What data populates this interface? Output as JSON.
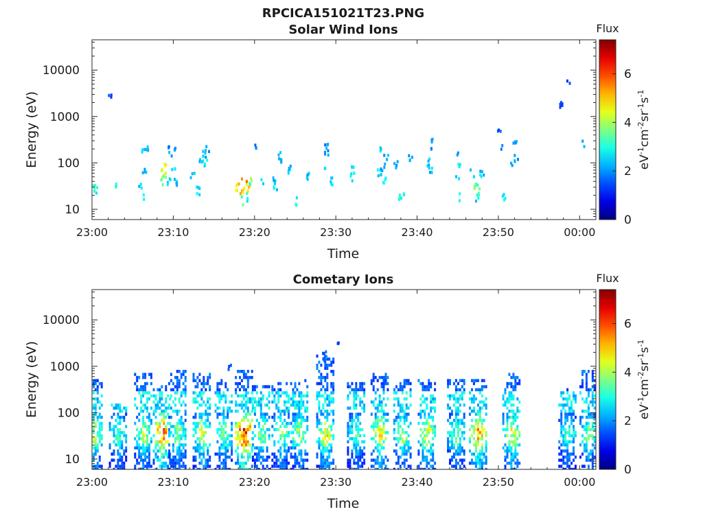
{
  "figure_title": "RPCICA151021T23.PNG",
  "colors": {
    "axis": "#262626",
    "background": "#ffffff"
  },
  "chart_data": [
    {
      "type": "heatmap",
      "title": "Solar Wind Ions",
      "xlabel": "Time",
      "ylabel": "Energy (eV)",
      "yscale": "log",
      "ylim": [
        6,
        45000
      ],
      "xlim": [
        "23:00",
        "00:02"
      ],
      "x_ticks": [
        "23:00",
        "23:10",
        "23:20",
        "23:30",
        "23:40",
        "23:50",
        "00:00"
      ],
      "y_ticks": [
        "10",
        "100",
        "1000",
        "10000"
      ],
      "colorbar": {
        "label_top": "Flux",
        "unit": "eV-1cm-2sr-1s-1",
        "ticks": [
          "0",
          "2",
          "4",
          "6"
        ],
        "range": [
          0,
          7.4
        ],
        "colormap": "jet"
      },
      "points": [
        {
          "t": 0.2,
          "e": 30,
          "f": 3.0
        },
        {
          "t": 0.5,
          "e": 25,
          "f": 2.8
        },
        {
          "t": 2.2,
          "e": 3000,
          "f": 1.4
        },
        {
          "t": 3.0,
          "e": 30,
          "f": 2.8
        },
        {
          "t": 6.0,
          "e": 30,
          "f": 2.5
        },
        {
          "t": 6.3,
          "e": 200,
          "f": 2.5
        },
        {
          "t": 6.5,
          "e": 18,
          "f": 2.8
        },
        {
          "t": 6.5,
          "e": 60,
          "f": 2.3
        },
        {
          "t": 6.7,
          "e": 180,
          "f": 2.4
        },
        {
          "t": 8.5,
          "e": 40,
          "f": 3.8
        },
        {
          "t": 8.7,
          "e": 60,
          "f": 4.2
        },
        {
          "t": 8.9,
          "e": 80,
          "f": 4.4
        },
        {
          "t": 9.0,
          "e": 50,
          "f": 3.9
        },
        {
          "t": 9.4,
          "e": 40,
          "f": 2.6
        },
        {
          "t": 9.5,
          "e": 260,
          "f": 1.9
        },
        {
          "t": 9.7,
          "e": 150,
          "f": 2.2
        },
        {
          "t": 10.0,
          "e": 80,
          "f": 2.4
        },
        {
          "t": 10.3,
          "e": 40,
          "f": 2.4
        },
        {
          "t": 10.2,
          "e": 200,
          "f": 2.0
        },
        {
          "t": 12.4,
          "e": 50,
          "f": 2.4
        },
        {
          "t": 13.0,
          "e": 25,
          "f": 2.5
        },
        {
          "t": 13.5,
          "e": 100,
          "f": 2.3
        },
        {
          "t": 13.8,
          "e": 150,
          "f": 2.2
        },
        {
          "t": 14.0,
          "e": 100,
          "f": 2.7
        },
        {
          "t": 14.2,
          "e": 200,
          "f": 2.2
        },
        {
          "t": 17.8,
          "e": 30,
          "f": 4.5
        },
        {
          "t": 18.2,
          "e": 40,
          "f": 5.0
        },
        {
          "t": 18.5,
          "e": 25,
          "f": 4.8
        },
        {
          "t": 18.8,
          "e": 35,
          "f": 5.4
        },
        {
          "t": 19.2,
          "e": 30,
          "f": 4.6
        },
        {
          "t": 18.6,
          "e": 15,
          "f": 3.2
        },
        {
          "t": 19.0,
          "e": 18,
          "f": 3.0
        },
        {
          "t": 19.6,
          "e": 40,
          "f": 3.8
        },
        {
          "t": 20.0,
          "e": 250,
          "f": 1.9
        },
        {
          "t": 21.0,
          "e": 40,
          "f": 2.4
        },
        {
          "t": 22.4,
          "e": 50,
          "f": 2.4
        },
        {
          "t": 22.6,
          "e": 30,
          "f": 2.6
        },
        {
          "t": 23.0,
          "e": 150,
          "f": 2.2
        },
        {
          "t": 23.3,
          "e": 120,
          "f": 2.0
        },
        {
          "t": 24.2,
          "e": 70,
          "f": 2.3
        },
        {
          "t": 25.3,
          "e": 15,
          "f": 2.8
        },
        {
          "t": 26.6,
          "e": 50,
          "f": 2.3
        },
        {
          "t": 28.8,
          "e": 250,
          "f": 2.0
        },
        {
          "t": 28.9,
          "e": 80,
          "f": 2.6
        },
        {
          "t": 28.9,
          "e": 180,
          "f": 2.1
        },
        {
          "t": 29.4,
          "e": 40,
          "f": 2.5
        },
        {
          "t": 32.0,
          "e": 50,
          "f": 2.7
        },
        {
          "t": 32.1,
          "e": 70,
          "f": 2.7
        },
        {
          "t": 35.4,
          "e": 60,
          "f": 2.4
        },
        {
          "t": 35.6,
          "e": 200,
          "f": 2.3
        },
        {
          "t": 35.8,
          "e": 80,
          "f": 2.0
        },
        {
          "t": 36.2,
          "e": 120,
          "f": 2.2
        },
        {
          "t": 36.0,
          "e": 40,
          "f": 2.6
        },
        {
          "t": 37.4,
          "e": 90,
          "f": 2.0
        },
        {
          "t": 38.0,
          "e": 18,
          "f": 2.8
        },
        {
          "t": 38.3,
          "e": 18,
          "f": 2.8
        },
        {
          "t": 39.2,
          "e": 120,
          "f": 2.1
        },
        {
          "t": 41.5,
          "e": 100,
          "f": 2.3
        },
        {
          "t": 41.6,
          "e": 70,
          "f": 2.4
        },
        {
          "t": 41.7,
          "e": 280,
          "f": 1.9
        },
        {
          "t": 42.0,
          "e": 200,
          "f": 2.0
        },
        {
          "t": 45.0,
          "e": 50,
          "f": 2.4
        },
        {
          "t": 45.1,
          "e": 150,
          "f": 2.2
        },
        {
          "t": 45.2,
          "e": 90,
          "f": 2.8
        },
        {
          "t": 45.2,
          "e": 18,
          "f": 2.9
        },
        {
          "t": 46.8,
          "e": 60,
          "f": 2.7
        },
        {
          "t": 47.1,
          "e": 40,
          "f": 3.3
        },
        {
          "t": 47.3,
          "e": 30,
          "f": 3.5
        },
        {
          "t": 47.6,
          "e": 25,
          "f": 3.2
        },
        {
          "t": 47.5,
          "e": 18,
          "f": 2.6
        },
        {
          "t": 48.0,
          "e": 60,
          "f": 2.4
        },
        {
          "t": 50.1,
          "e": 500,
          "f": 1.5
        },
        {
          "t": 50.4,
          "e": 200,
          "f": 2.1
        },
        {
          "t": 50.6,
          "e": 18,
          "f": 2.8
        },
        {
          "t": 51.8,
          "e": 100,
          "f": 2.3
        },
        {
          "t": 52.0,
          "e": 250,
          "f": 2.1
        },
        {
          "t": 52.2,
          "e": 130,
          "f": 2.0
        },
        {
          "t": 57.8,
          "e": 1800,
          "f": 1.5
        },
        {
          "t": 58.6,
          "e": 5800,
          "f": 1.4
        },
        {
          "t": 60.6,
          "e": 250,
          "f": 2.0
        }
      ]
    },
    {
      "type": "heatmap",
      "title": "Cometary Ions",
      "xlabel": "Time",
      "ylabel": "Energy (eV)",
      "yscale": "log",
      "ylim": [
        6,
        45000
      ],
      "xlim": [
        "23:00",
        "00:02"
      ],
      "x_ticks": [
        "23:00",
        "23:10",
        "23:20",
        "23:30",
        "23:40",
        "23:50",
        "00:00"
      ],
      "y_ticks": [
        "10",
        "100",
        "1000",
        "10000"
      ],
      "colorbar": {
        "label_top": "Flux",
        "unit": "eV-1cm-2sr-1s-1",
        "ticks": [
          "0",
          "2",
          "4",
          "6"
        ],
        "range": [
          0,
          7.4
        ],
        "colormap": "jet"
      },
      "bursts": [
        {
          "t": 0.3,
          "emax": 500,
          "peak": 4.6
        },
        {
          "t": 3.3,
          "emax": 150,
          "peak": 3.6
        },
        {
          "t": 6.4,
          "emax": 700,
          "peak": 4.4
        },
        {
          "t": 8.7,
          "emax": 400,
          "peak": 6.0
        },
        {
          "t": 10.6,
          "emax": 800,
          "peak": 4.0
        },
        {
          "t": 13.6,
          "emax": 700,
          "peak": 4.5
        },
        {
          "t": 16.3,
          "emax": 500,
          "peak": 4.0
        },
        {
          "t": 18.8,
          "emax": 900,
          "peak": 7.0
        },
        {
          "t": 20.9,
          "emax": 400,
          "peak": 4.0
        },
        {
          "t": 23.3,
          "emax": 450,
          "peak": 4.2
        },
        {
          "t": 25.6,
          "emax": 500,
          "peak": 4.3
        },
        {
          "t": 28.8,
          "emax": 1700,
          "peak": 4.8
        },
        {
          "t": 32.6,
          "emax": 450,
          "peak": 3.8
        },
        {
          "t": 35.5,
          "emax": 700,
          "peak": 5.0
        },
        {
          "t": 38.3,
          "emax": 550,
          "peak": 4.2
        },
        {
          "t": 41.3,
          "emax": 550,
          "peak": 4.8
        },
        {
          "t": 44.9,
          "emax": 500,
          "peak": 4.0
        },
        {
          "t": 47.6,
          "emax": 550,
          "peak": 5.6
        },
        {
          "t": 51.7,
          "emax": 700,
          "peak": 4.8
        },
        {
          "t": 58.6,
          "emax": 350,
          "peak": 3.6
        },
        {
          "t": 61.2,
          "emax": 800,
          "peak": 4.0
        }
      ],
      "points": [
        {
          "t": 30.3,
          "e": 3800,
          "f": 1.4
        },
        {
          "t": 28.6,
          "e": 1700,
          "f": 1.6
        },
        {
          "t": 28.7,
          "e": 1300,
          "f": 1.8
        },
        {
          "t": 17.0,
          "e": 900,
          "f": 1.5
        }
      ]
    }
  ]
}
